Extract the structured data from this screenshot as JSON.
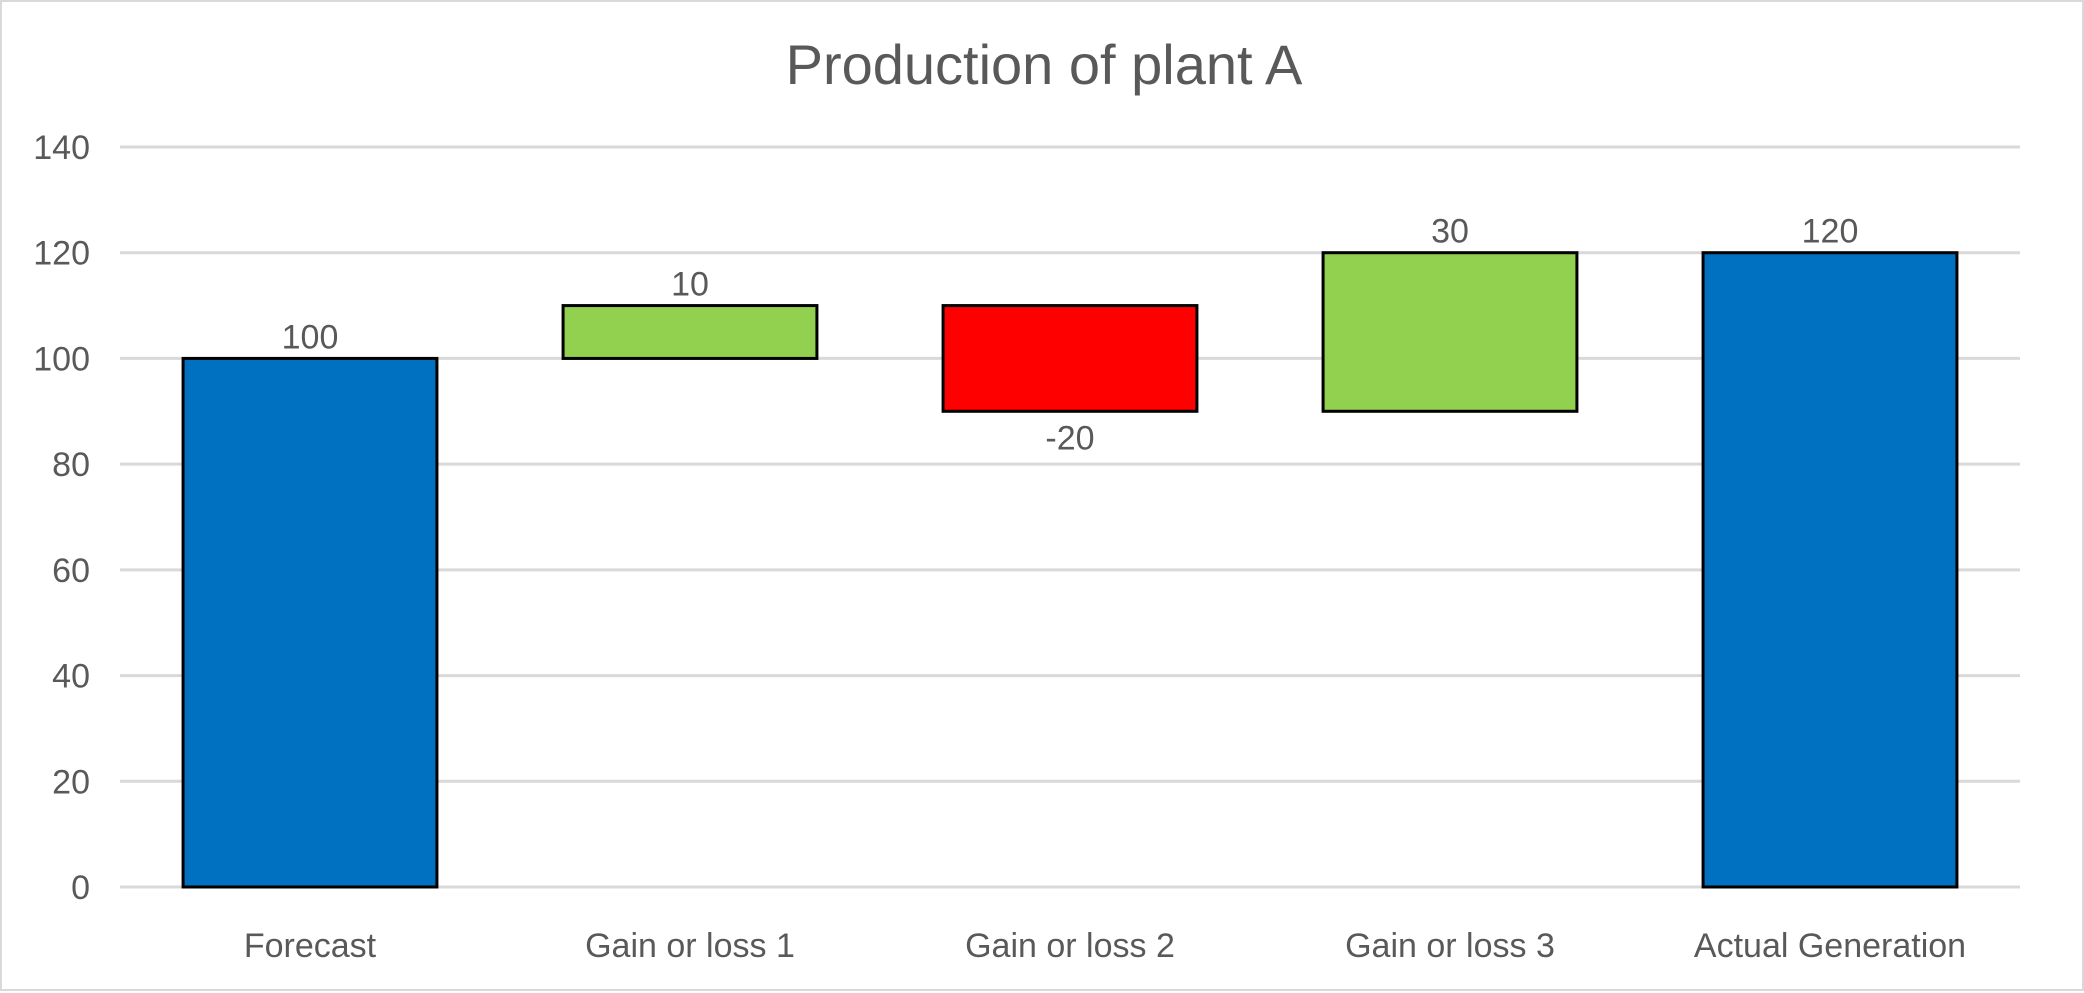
{
  "chart_data": {
    "type": "bar",
    "subtype": "waterfall",
    "title": "Production of plant A",
    "xlabel": "",
    "ylabel": "",
    "categories": [
      "Forecast",
      "Gain or loss 1",
      "Gain or loss 2",
      "Gain or loss 3",
      "Actual Generation"
    ],
    "values": [
      100,
      10,
      -20,
      30,
      120
    ],
    "data_labels": [
      "100",
      "10",
      "-20",
      "30",
      "120"
    ],
    "bar_kinds": [
      "total",
      "increase",
      "decrease",
      "increase",
      "total"
    ],
    "ylim": [
      0,
      140
    ],
    "yticks": [
      0,
      20,
      40,
      60,
      80,
      100,
      120,
      140
    ],
    "ytick_labels": [
      "0",
      "20",
      "40",
      "60",
      "80",
      "100",
      "120",
      "140"
    ],
    "grid": true,
    "legend": "none",
    "colors": {
      "total": "#0070C0",
      "increase": "#92D050",
      "decrease": "#FF0000",
      "gridline": "#d9d9d9",
      "text": "#595959",
      "bar_outline": "#000000"
    }
  }
}
